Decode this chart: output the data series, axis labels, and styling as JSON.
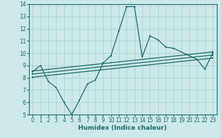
{
  "xlabel": "Humidex (Indice chaleur)",
  "bg_color": "#cce8e8",
  "grid_color": "#aed4d4",
  "line_color": "#1a6b6b",
  "xlim": [
    -0.5,
    23.5
  ],
  "ylim": [
    5,
    14
  ],
  "xticks": [
    0,
    1,
    2,
    3,
    4,
    5,
    6,
    7,
    8,
    9,
    10,
    11,
    12,
    13,
    14,
    15,
    16,
    17,
    18,
    19,
    20,
    21,
    22,
    23
  ],
  "yticks": [
    5,
    6,
    7,
    8,
    9,
    10,
    11,
    12,
    13,
    14
  ],
  "main_series": {
    "x": [
      0,
      1,
      2,
      3,
      4,
      5,
      6,
      7,
      8,
      9,
      10,
      11,
      12,
      13,
      14,
      15,
      16,
      17,
      18,
      21,
      22,
      23
    ],
    "y": [
      8.5,
      9.0,
      7.7,
      7.2,
      6.0,
      5.0,
      6.2,
      7.5,
      7.8,
      9.2,
      9.8,
      11.8,
      13.8,
      13.8,
      9.7,
      11.4,
      11.1,
      10.5,
      10.4,
      9.5,
      8.7,
      10.0
    ]
  },
  "trend_lines": [
    {
      "x": [
        0,
        23
      ],
      "y": [
        8.3,
        9.85
      ]
    },
    {
      "x": [
        0,
        23
      ],
      "y": [
        8.55,
        10.1
      ]
    },
    {
      "x": [
        0,
        23
      ],
      "y": [
        8.05,
        9.6
      ]
    }
  ]
}
